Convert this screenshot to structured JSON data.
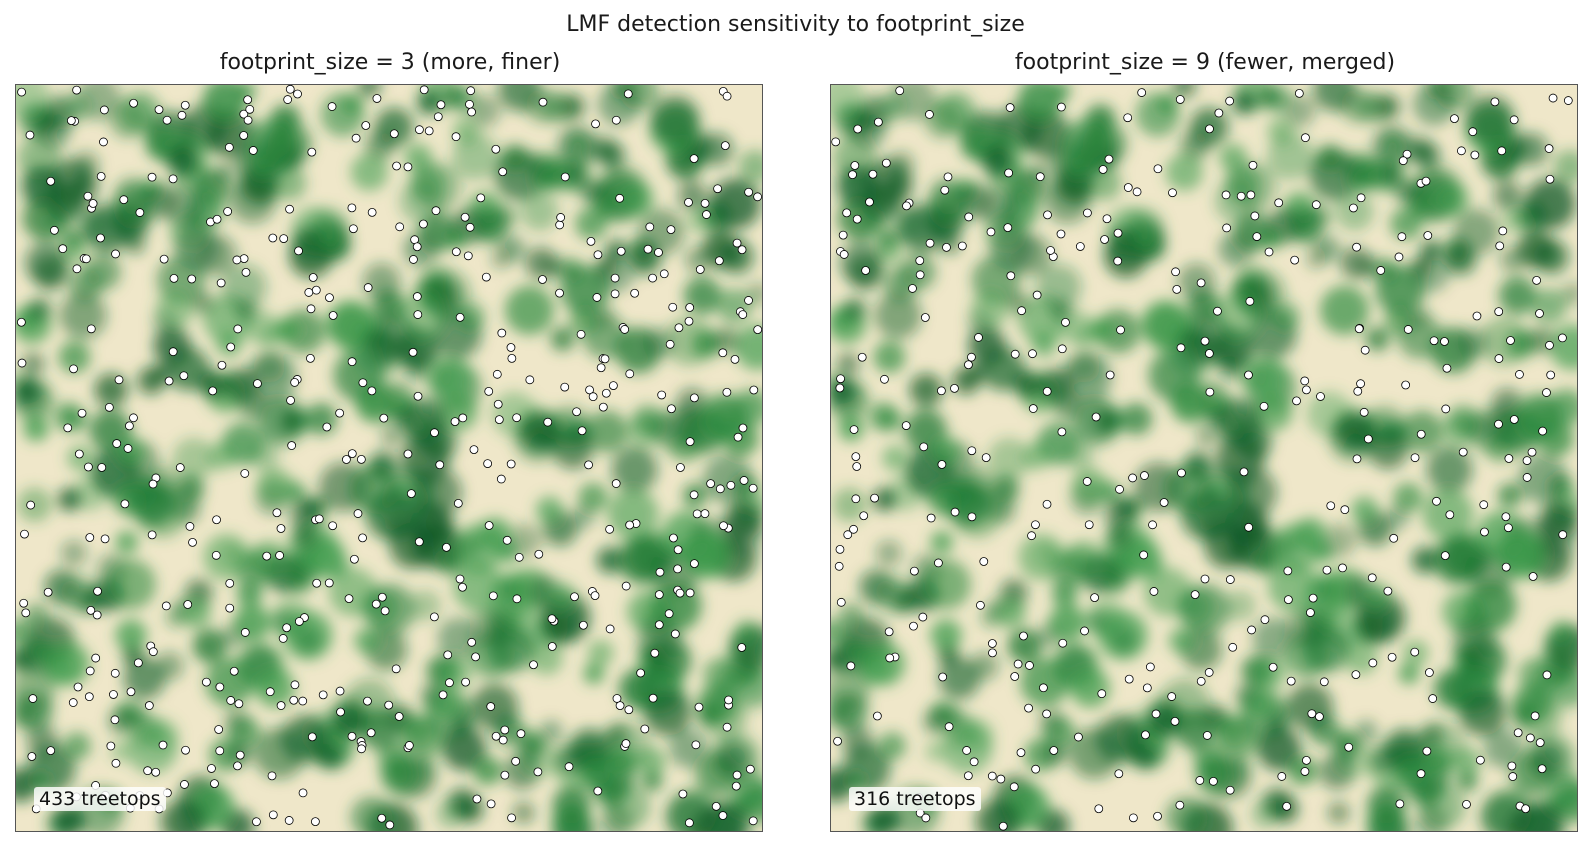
{
  "title": "LMF detection sensitivity to footprint_size",
  "panels": [
    {
      "title": "footprint_size = 3 (more, finer)",
      "count_label": "433 treetops"
    },
    {
      "title": "footprint_size = 9 (fewer, merged)",
      "count_label": "316 treetops"
    }
  ],
  "colors": {
    "canopy_low": "#efe7c9",
    "canopy_high": "#0b5a24",
    "marker_fill": "#ffffff",
    "marker_edge": "#000000"
  },
  "chart_data": [
    {
      "type": "scatter",
      "background": "canopy height raster (greens colormap)",
      "title": "footprint_size = 3 (more, finer)",
      "series": [
        {
          "name": "",
          "count": 433
        }
      ],
      "annotation": "433 treetops",
      "grid": false,
      "axes_visible": false
    },
    {
      "type": "scatter",
      "background": "canopy height raster (greens colormap)",
      "title": "footprint_size = 9 (fewer, merged)",
      "series": [
        {
          "name": "",
          "count": 316
        }
      ],
      "annotation": "316 treetops",
      "grid": false,
      "axes_visible": false
    }
  ]
}
